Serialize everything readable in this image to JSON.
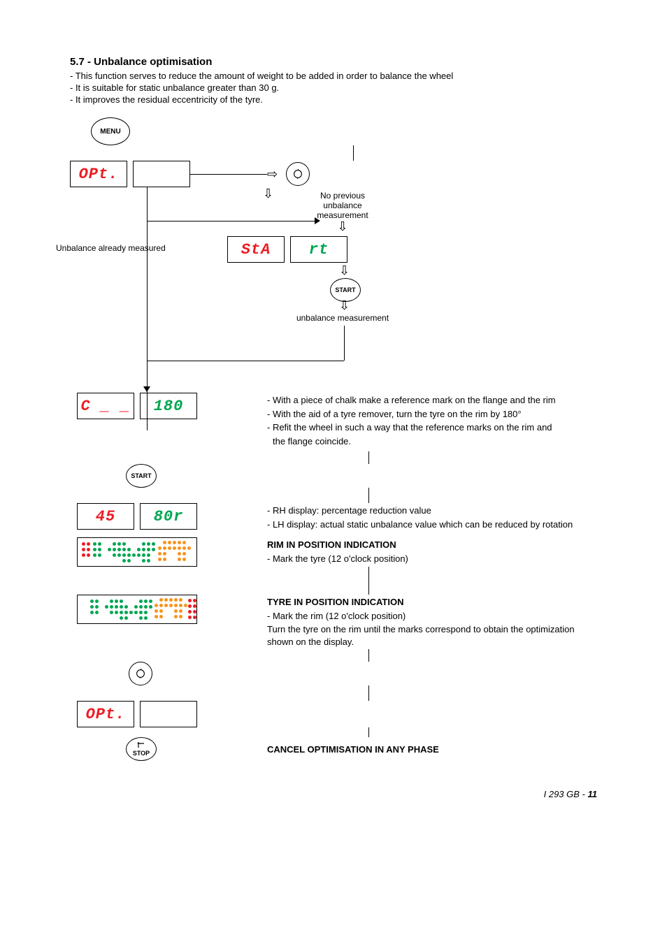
{
  "section": {
    "title": "5.7 - Unbalance optimisation",
    "bullets": [
      "- This function serves to reduce the amount of weight to be added in order to balance the wheel",
      "- It is suitable for static unbalance greater than 30 g.",
      "- It improves the residual eccentricity of the tyre."
    ]
  },
  "buttons": {
    "menu": "MENU",
    "start": "START",
    "stop": "STOP"
  },
  "displays": {
    "opt": "OPt.",
    "sta": "StA",
    "rt": "rt",
    "c": "C _ _",
    "d180": "180",
    "d45": "45",
    "d80r": "80r"
  },
  "labels": {
    "already_measured": "Unbalance already measured",
    "no_previous_1": "No previous",
    "no_previous_2": "unbalance",
    "no_previous_3": "measurement",
    "unbalance_measurement": "unbalance measurement"
  },
  "block180": {
    "l1": "- With a piece of chalk make a reference mark on the flange and the rim",
    "l2": "- With the aid of a tyre remover, turn the tyre on the rim by 180°",
    "l3": "- Refit the wheel in such a way that the reference marks on the rim and",
    "l4": "  the flange coincide."
  },
  "block45": {
    "l1": "- RH display:  percentage reduction value",
    "l2": "- LH display:  actual static unbalance value which can be reduced by rotation"
  },
  "rim_block": {
    "title": "RIM IN POSITION INDICATION",
    "l1": "- Mark the tyre (12 o'clock position)"
  },
  "tyre_block": {
    "title": "TYRE IN POSITION INDICATION",
    "l1": "- Mark the rim (12 o'clock position)",
    "l2": "Turn the tyre on the rim until the marks correspond to obtain the optimization shown on the display."
  },
  "cancel": "CANCEL OPTIMISATION IN ANY PHASE",
  "footer": {
    "code": "I   293 GB - ",
    "page": "11"
  },
  "colors": {
    "red": "#ed1c24",
    "green": "#00a651",
    "orange": "#f7941d",
    "black": "#000000"
  },
  "led_panel_1": {
    "green_cols": [
      0,
      1,
      2,
      3,
      4,
      5,
      6,
      7,
      8,
      9,
      10,
      11
    ],
    "orange_group_x": 100,
    "red_col": null,
    "pattern": "left"
  },
  "led_panel_2": {
    "red_col": true
  }
}
